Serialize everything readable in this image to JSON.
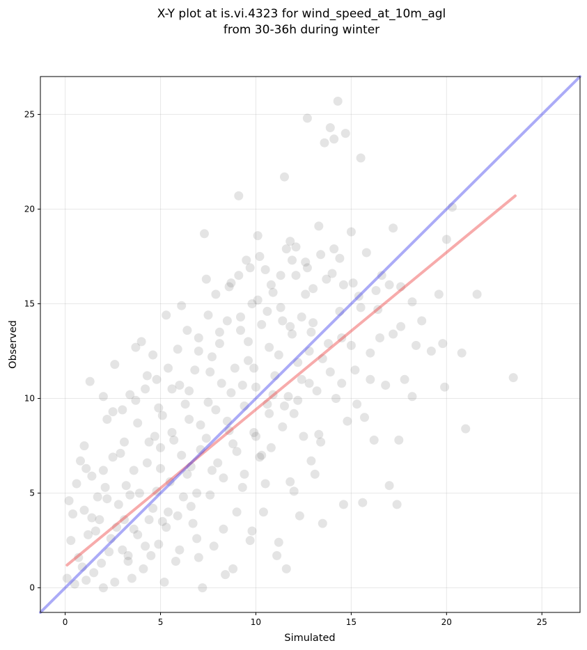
{
  "chart_data": {
    "type": "scatter",
    "title_lines": [
      "X-Y plot at is.vi.4323 for wind_speed_at_10m_agl",
      "from 30-36h during winter"
    ],
    "xlabel": "Simulated",
    "ylabel": "Observed",
    "xlim": [
      -1.3,
      27
    ],
    "ylim": [
      -1.3,
      27
    ],
    "xticks": [
      0,
      5,
      10,
      15,
      20,
      25
    ],
    "yticks": [
      0,
      5,
      10,
      15,
      20,
      25
    ],
    "xtick_labels": [
      "0",
      "5",
      "10",
      "15",
      "20",
      "25"
    ],
    "ytick_labels": [
      "0",
      "5",
      "10",
      "15",
      "20",
      "25"
    ],
    "grid": true,
    "series": [
      {
        "marker_color": "#555555",
        "points": [
          [
            0.2,
            4.6
          ],
          [
            0.4,
            3.9
          ],
          [
            0.3,
            2.5
          ],
          [
            0.6,
            5.5
          ],
          [
            0.8,
            6.7
          ],
          [
            1.0,
            7.5
          ],
          [
            1.3,
            10.9
          ],
          [
            1.1,
            6.3
          ],
          [
            1.4,
            3.7
          ],
          [
            0.9,
            1.1
          ],
          [
            0.5,
            0.2
          ],
          [
            1.5,
            0.8
          ],
          [
            2.0,
            0.0
          ],
          [
            2.3,
            1.9
          ],
          [
            1.8,
            3.6
          ],
          [
            2.1,
            5.3
          ],
          [
            2.5,
            6.9
          ],
          [
            2.0,
            10.1
          ],
          [
            2.2,
            8.9
          ],
          [
            2.6,
            11.8
          ],
          [
            2.9,
            7.1
          ],
          [
            3.1,
            3.6
          ],
          [
            3.0,
            9.4
          ],
          [
            3.4,
            10.2
          ],
          [
            3.3,
            1.4
          ],
          [
            3.6,
            6.2
          ],
          [
            3.7,
            12.7
          ],
          [
            3.8,
            8.7
          ],
          [
            4.0,
            13.0
          ],
          [
            4.2,
            2.2
          ],
          [
            4.2,
            10.5
          ],
          [
            4.4,
            7.7
          ],
          [
            4.6,
            12.3
          ],
          [
            4.6,
            4.2
          ],
          [
            4.8,
            11.0
          ],
          [
            5.0,
            6.3
          ],
          [
            5.1,
            9.1
          ],
          [
            5.3,
            3.2
          ],
          [
            5.3,
            14.4
          ],
          [
            5.6,
            10.5
          ],
          [
            5.7,
            7.8
          ],
          [
            5.8,
            1.4
          ],
          [
            5.9,
            12.6
          ],
          [
            6.1,
            14.9
          ],
          [
            6.2,
            4.8
          ],
          [
            6.5,
            8.9
          ],
          [
            6.6,
            6.4
          ],
          [
            6.8,
            11.5
          ],
          [
            6.9,
            2.6
          ],
          [
            7.0,
            13.2
          ],
          [
            7.1,
            7.3
          ],
          [
            7.3,
            18.7
          ],
          [
            7.4,
            16.3
          ],
          [
            7.5,
            9.8
          ],
          [
            7.6,
            4.9
          ],
          [
            7.7,
            12.2
          ],
          [
            7.9,
            15.5
          ],
          [
            8.0,
            6.6
          ],
          [
            8.2,
            10.8
          ],
          [
            8.3,
            3.1
          ],
          [
            8.5,
            14.1
          ],
          [
            8.6,
            8.3
          ],
          [
            8.7,
            16.1
          ],
          [
            8.8,
            1.0
          ],
          [
            8.9,
            11.6
          ],
          [
            9.0,
            7.2
          ],
          [
            9.1,
            20.7
          ],
          [
            9.2,
            13.6
          ],
          [
            9.3,
            5.3
          ],
          [
            9.4,
            9.6
          ],
          [
            9.5,
            17.3
          ],
          [
            9.6,
            12.0
          ],
          [
            9.7,
            2.5
          ],
          [
            9.8,
            15.0
          ],
          [
            9.9,
            8.2
          ],
          [
            10.0,
            10.6
          ],
          [
            10.1,
            18.6
          ],
          [
            10.2,
            6.9
          ],
          [
            10.3,
            13.9
          ],
          [
            10.4,
            4.0
          ],
          [
            10.5,
            16.8
          ],
          [
            10.6,
            9.7
          ],
          [
            10.7,
            12.7
          ],
          [
            10.8,
            7.4
          ],
          [
            10.9,
            15.6
          ],
          [
            11.0,
            11.2
          ],
          [
            11.1,
            1.7
          ],
          [
            11.3,
            14.8
          ],
          [
            11.4,
            8.5
          ],
          [
            11.5,
            21.7
          ],
          [
            11.6,
            17.9
          ],
          [
            11.7,
            10.1
          ],
          [
            11.8,
            5.6
          ],
          [
            11.9,
            13.4
          ],
          [
            12.0,
            9.2
          ],
          [
            12.1,
            16.5
          ],
          [
            12.2,
            11.9
          ],
          [
            12.3,
            3.8
          ],
          [
            12.4,
            14.3
          ],
          [
            12.5,
            8.0
          ],
          [
            12.6,
            17.2
          ],
          [
            12.7,
            24.8
          ],
          [
            12.8,
            12.5
          ],
          [
            12.9,
            6.7
          ],
          [
            13.0,
            15.8
          ],
          [
            13.2,
            10.4
          ],
          [
            13.3,
            19.1
          ],
          [
            13.4,
            7.7
          ],
          [
            13.6,
            23.5
          ],
          [
            13.8,
            12.9
          ],
          [
            13.9,
            24.3
          ],
          [
            14.0,
            16.6
          ],
          [
            14.1,
            23.7
          ],
          [
            14.2,
            10.0
          ],
          [
            14.3,
            25.7
          ],
          [
            14.4,
            17.4
          ],
          [
            14.5,
            13.2
          ],
          [
            14.6,
            4.4
          ],
          [
            14.7,
            24.0
          ],
          [
            14.8,
            8.8
          ],
          [
            15.0,
            18.8
          ],
          [
            15.2,
            11.5
          ],
          [
            15.4,
            15.4
          ],
          [
            15.5,
            22.7
          ],
          [
            15.6,
            4.5
          ],
          [
            15.7,
            9.0
          ],
          [
            15.8,
            17.7
          ],
          [
            16.0,
            12.4
          ],
          [
            16.2,
            7.8
          ],
          [
            16.4,
            14.7
          ],
          [
            16.6,
            16.5
          ],
          [
            16.8,
            10.7
          ],
          [
            17.0,
            5.4
          ],
          [
            17.2,
            19.0
          ],
          [
            17.4,
            4.4
          ],
          [
            17.5,
            7.8
          ],
          [
            17.6,
            15.9
          ],
          [
            17.8,
            11.0
          ],
          [
            18.2,
            10.1
          ],
          [
            18.4,
            12.8
          ],
          [
            18.7,
            14.1
          ],
          [
            19.2,
            12.5
          ],
          [
            19.6,
            15.5
          ],
          [
            19.8,
            12.9
          ],
          [
            19.9,
            10.6
          ],
          [
            20.0,
            18.4
          ],
          [
            20.3,
            20.1
          ],
          [
            20.8,
            12.4
          ],
          [
            21.0,
            8.4
          ],
          [
            21.6,
            15.5
          ],
          [
            23.5,
            11.1
          ],
          [
            1.2,
            2.8
          ],
          [
            1.7,
            4.8
          ],
          [
            2.4,
            2.6
          ],
          [
            2.8,
            4.4
          ],
          [
            3.5,
            0.5
          ],
          [
            3.9,
            5.0
          ],
          [
            4.1,
            1.0
          ],
          [
            4.7,
            8.0
          ],
          [
            5.2,
            0.3
          ],
          [
            5.5,
            5.6
          ],
          [
            6.0,
            2.0
          ],
          [
            6.3,
            9.7
          ],
          [
            6.7,
            3.4
          ],
          [
            7.2,
            0.0
          ],
          [
            7.8,
            2.2
          ],
          [
            8.4,
            0.7
          ],
          [
            9.0,
            4.0
          ],
          [
            9.8,
            3.0
          ],
          [
            10.5,
            5.5
          ],
          [
            11.2,
            2.4
          ],
          [
            11.6,
            1.0
          ],
          [
            12.0,
            5.1
          ],
          [
            13.1,
            6.0
          ],
          [
            13.5,
            3.4
          ],
          [
            3.0,
            2.0
          ],
          [
            3.2,
            5.4
          ],
          [
            4.4,
            3.6
          ],
          [
            4.9,
            2.3
          ],
          [
            5.4,
            4.0
          ],
          [
            6.4,
            6.0
          ],
          [
            6.9,
            5.0
          ],
          [
            7.4,
            7.9
          ],
          [
            7.9,
            9.4
          ],
          [
            8.5,
            8.8
          ],
          [
            9.3,
            10.7
          ],
          [
            9.9,
            11.6
          ],
          [
            10.7,
            9.2
          ],
          [
            11.2,
            12.3
          ],
          [
            11.8,
            13.8
          ],
          [
            12.4,
            11.0
          ],
          [
            12.9,
            13.5
          ],
          [
            13.5,
            12.1
          ],
          [
            14.4,
            14.6
          ],
          [
            15.1,
            16.1
          ],
          [
            1.0,
            4.1
          ],
          [
            1.6,
            3.0
          ],
          [
            2.2,
            4.7
          ],
          [
            2.7,
            3.2
          ],
          [
            3.4,
            4.9
          ],
          [
            3.8,
            2.8
          ],
          [
            4.3,
            6.6
          ],
          [
            4.8,
            5.1
          ],
          [
            5.0,
            7.4
          ],
          [
            5.6,
            8.2
          ],
          [
            6.1,
            7.0
          ],
          [
            6.5,
            10.4
          ],
          [
            7.1,
            8.6
          ],
          [
            7.6,
            11.4
          ],
          [
            8.1,
            12.9
          ],
          [
            8.7,
            10.3
          ],
          [
            9.2,
            14.3
          ],
          [
            9.6,
            13.0
          ],
          [
            10.1,
            15.2
          ],
          [
            10.8,
            16.0
          ],
          [
            11.4,
            14.1
          ],
          [
            11.9,
            17.3
          ],
          [
            12.6,
            15.5
          ],
          [
            13.0,
            14.0
          ],
          [
            13.7,
            16.3
          ],
          [
            0.1,
            0.5
          ],
          [
            0.7,
            1.6
          ],
          [
            1.1,
            0.4
          ],
          [
            1.9,
            1.3
          ],
          [
            2.6,
            0.3
          ],
          [
            3.3,
            1.7
          ],
          [
            3.6,
            3.1
          ],
          [
            4.5,
            1.7
          ],
          [
            5.1,
            3.5
          ],
          [
            5.9,
            3.8
          ],
          [
            6.6,
            4.3
          ],
          [
            7.0,
            1.6
          ],
          [
            7.7,
            6.2
          ],
          [
            8.3,
            5.8
          ],
          [
            8.8,
            7.6
          ],
          [
            9.4,
            6.0
          ],
          [
            10.0,
            8.0
          ],
          [
            10.3,
            7.0
          ],
          [
            10.9,
            10.2
          ],
          [
            11.5,
            9.6
          ],
          [
            12.2,
            9.9
          ],
          [
            12.8,
            10.8
          ],
          [
            13.3,
            8.1
          ],
          [
            13.9,
            11.4
          ],
          [
            14.5,
            10.8
          ],
          [
            15.0,
            12.8
          ],
          [
            15.3,
            9.7
          ],
          [
            16.0,
            11.0
          ],
          [
            16.5,
            13.2
          ],
          [
            17.2,
            13.4
          ],
          [
            1.4,
            5.9
          ],
          [
            2.0,
            6.2
          ],
          [
            2.5,
            9.3
          ],
          [
            3.1,
            7.7
          ],
          [
            3.7,
            9.9
          ],
          [
            4.3,
            11.2
          ],
          [
            4.9,
            9.5
          ],
          [
            5.4,
            11.6
          ],
          [
            6.0,
            10.7
          ],
          [
            6.4,
            13.6
          ],
          [
            7.0,
            12.5
          ],
          [
            7.5,
            14.4
          ],
          [
            8.1,
            13.5
          ],
          [
            8.6,
            15.9
          ],
          [
            9.1,
            16.5
          ],
          [
            9.7,
            16.9
          ],
          [
            10.2,
            17.5
          ],
          [
            10.6,
            14.6
          ],
          [
            11.3,
            16.5
          ],
          [
            11.8,
            18.3
          ],
          [
            12.1,
            18.0
          ],
          [
            12.7,
            16.9
          ],
          [
            13.4,
            17.6
          ],
          [
            14.1,
            17.9
          ],
          [
            14.6,
            16.0
          ],
          [
            15.5,
            14.8
          ],
          [
            16.3,
            15.7
          ],
          [
            17.0,
            16.0
          ],
          [
            17.6,
            13.8
          ],
          [
            18.2,
            15.1
          ]
        ]
      }
    ],
    "lines": [
      {
        "name": "fit",
        "color": "#ee4444",
        "x": [
          0.1,
          23.6
        ],
        "y": [
          1.2,
          20.7
        ]
      },
      {
        "name": "identity",
        "color": "#4444ee",
        "x": [
          -1.3,
          27
        ],
        "y": [
          -1.3,
          27
        ]
      }
    ]
  }
}
